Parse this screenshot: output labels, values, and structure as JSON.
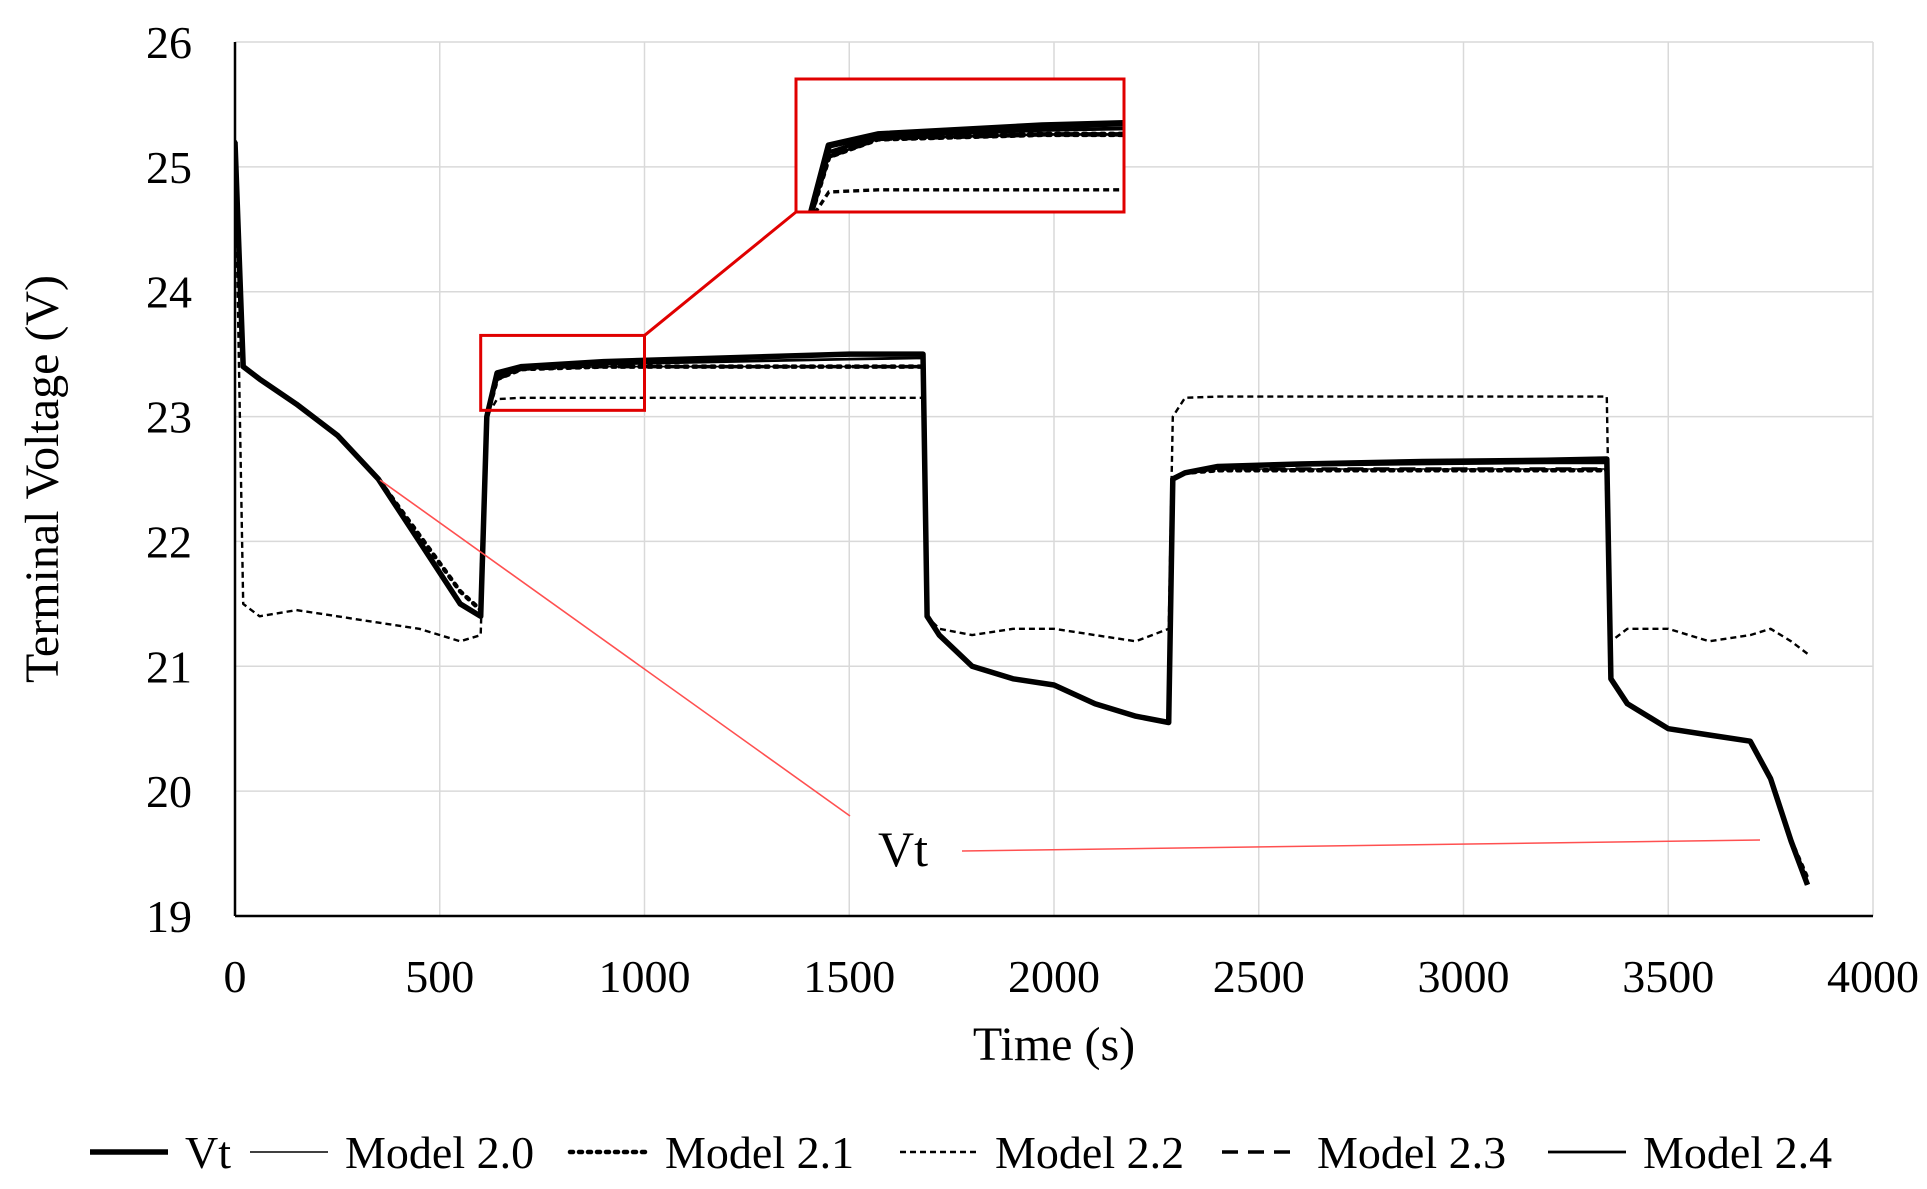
{
  "chart_data": {
    "type": "line",
    "title": "",
    "xlabel": "Time (s)",
    "ylabel": "Terminal Voltage (V)",
    "xlim": [
      0,
      4000
    ],
    "ylim": [
      19,
      26
    ],
    "xticks": [
      "0",
      "500",
      "1000",
      "1500",
      "2000",
      "2500",
      "3000",
      "3500",
      "4000"
    ],
    "yticks": [
      "19",
      "20",
      "21",
      "22",
      "23",
      "24",
      "25",
      "26"
    ],
    "grid": true,
    "legend_position": "bottom",
    "annotation": "Vt",
    "inset": {
      "xlim": [
        600,
        1000
      ],
      "ylim": [
        23.05,
        23.65
      ],
      "type": "zoom"
    },
    "series": [
      {
        "name": "Vt",
        "style": "solid-thick",
        "x": [
          0,
          20,
          60,
          150,
          250,
          350,
          450,
          550,
          600,
          615,
          640,
          700,
          900,
          1200,
          1500,
          1680,
          1690,
          1720,
          1800,
          1900,
          2000,
          2100,
          2200,
          2280,
          2290,
          2320,
          2400,
          2600,
          2900,
          3200,
          3350,
          3360,
          3400,
          3500,
          3600,
          3700,
          3750,
          3800,
          3840
        ],
        "y": [
          25.2,
          23.4,
          23.3,
          23.1,
          22.85,
          22.5,
          22.0,
          21.5,
          21.4,
          23.0,
          23.35,
          23.4,
          23.44,
          23.47,
          23.5,
          23.5,
          21.4,
          21.25,
          21.0,
          20.9,
          20.85,
          20.7,
          20.6,
          20.55,
          22.5,
          22.55,
          22.6,
          22.62,
          22.64,
          22.65,
          22.66,
          20.9,
          20.7,
          20.5,
          20.45,
          20.4,
          20.1,
          19.6,
          19.25
        ]
      },
      {
        "name": "Model 2.0",
        "style": "solid-thin",
        "x": [
          0,
          20,
          60,
          150,
          250,
          350,
          450,
          550,
          600,
          615,
          640,
          700,
          900,
          1200,
          1500,
          1680,
          1690,
          1720,
          1800,
          1900,
          2000,
          2100,
          2200,
          2280,
          2290,
          2320,
          2400,
          2600,
          2900,
          3200,
          3350,
          3360,
          3400,
          3500,
          3600,
          3700,
          3750,
          3800,
          3840
        ],
        "y": [
          25.2,
          23.4,
          23.3,
          23.1,
          22.85,
          22.5,
          22.0,
          21.5,
          21.4,
          23.0,
          23.3,
          23.38,
          23.4,
          23.4,
          23.4,
          23.4,
          21.4,
          21.25,
          21.0,
          20.9,
          20.85,
          20.7,
          20.6,
          20.55,
          22.5,
          22.55,
          22.58,
          22.58,
          22.58,
          22.58,
          22.58,
          20.9,
          20.7,
          20.5,
          20.45,
          20.4,
          20.1,
          19.6,
          19.25
        ]
      },
      {
        "name": "Model 2.1",
        "style": "dotted",
        "x": [
          0,
          20,
          60,
          150,
          250,
          350,
          450,
          550,
          600,
          615,
          640,
          700,
          900,
          1200,
          1500,
          1680,
          1690,
          1720,
          1800,
          1900,
          2000,
          2100,
          2200,
          2280,
          2290,
          2320,
          2400,
          2600,
          2900,
          3200,
          3350,
          3360,
          3400,
          3500,
          3600,
          3700,
          3750,
          3800,
          3840
        ],
        "y": [
          25.2,
          23.4,
          23.3,
          23.1,
          22.85,
          22.5,
          22.05,
          21.6,
          21.45,
          23.0,
          23.3,
          23.38,
          23.4,
          23.4,
          23.4,
          23.4,
          21.4,
          21.25,
          21.0,
          20.9,
          20.85,
          20.7,
          20.6,
          20.55,
          22.5,
          22.55,
          22.57,
          22.57,
          22.57,
          22.57,
          22.57,
          20.9,
          20.7,
          20.5,
          20.45,
          20.4,
          20.1,
          19.6,
          19.3
        ]
      },
      {
        "name": "Model 2.2",
        "style": "short-dash",
        "x": [
          0,
          20,
          60,
          150,
          250,
          350,
          450,
          550,
          600,
          615,
          640,
          700,
          900,
          1200,
          1500,
          1680,
          1690,
          1720,
          1800,
          1900,
          2000,
          2100,
          2200,
          2280,
          2290,
          2320,
          2400,
          2600,
          2900,
          3200,
          3350,
          3360,
          3400,
          3500,
          3600,
          3700,
          3750,
          3800,
          3840
        ],
        "y": [
          25.2,
          21.5,
          21.4,
          21.45,
          21.4,
          21.35,
          21.3,
          21.2,
          21.25,
          23.0,
          23.14,
          23.15,
          23.15,
          23.15,
          23.15,
          23.15,
          21.4,
          21.3,
          21.25,
          21.3,
          21.3,
          21.25,
          21.2,
          21.3,
          23.0,
          23.15,
          23.16,
          23.16,
          23.16,
          23.16,
          23.16,
          21.2,
          21.3,
          21.3,
          21.2,
          21.25,
          21.3,
          21.2,
          21.1
        ]
      },
      {
        "name": "Model 2.3",
        "style": "long-dash",
        "x": [
          0,
          20,
          60,
          150,
          250,
          350,
          450,
          550,
          600,
          615,
          640,
          700,
          900,
          1200,
          1500,
          1680,
          1690,
          1720,
          1800,
          1900,
          2000,
          2100,
          2200,
          2280,
          2290,
          2320,
          2400,
          2600,
          2900,
          3200,
          3350,
          3360,
          3400,
          3500,
          3600,
          3700,
          3750,
          3800,
          3840
        ],
        "y": [
          25.2,
          23.4,
          23.3,
          23.1,
          22.85,
          22.5,
          22.0,
          21.5,
          21.4,
          23.0,
          23.3,
          23.38,
          23.4,
          23.4,
          23.4,
          23.4,
          21.4,
          21.25,
          21.0,
          20.9,
          20.85,
          20.7,
          20.6,
          20.55,
          22.5,
          22.55,
          22.58,
          22.58,
          22.58,
          22.58,
          22.58,
          20.9,
          20.7,
          20.5,
          20.45,
          20.4,
          20.1,
          19.6,
          19.25
        ]
      },
      {
        "name": "Model 2.4",
        "style": "solid-medium",
        "x": [
          0,
          20,
          60,
          150,
          250,
          350,
          450,
          550,
          600,
          615,
          640,
          700,
          900,
          1200,
          1500,
          1680,
          1690,
          1720,
          1800,
          1900,
          2000,
          2100,
          2200,
          2280,
          2290,
          2320,
          2400,
          2600,
          2900,
          3200,
          3350,
          3360,
          3400,
          3500,
          3600,
          3700,
          3750,
          3800,
          3840
        ],
        "y": [
          25.2,
          23.4,
          23.3,
          23.1,
          22.85,
          22.5,
          22.0,
          21.5,
          21.4,
          23.0,
          23.32,
          23.39,
          23.42,
          23.44,
          23.46,
          23.47,
          21.4,
          21.25,
          21.0,
          20.9,
          20.85,
          20.7,
          20.6,
          20.55,
          22.5,
          22.55,
          22.6,
          22.61,
          22.62,
          22.63,
          22.63,
          20.9,
          20.7,
          20.5,
          20.45,
          20.4,
          20.1,
          19.6,
          19.25
        ]
      }
    ]
  }
}
